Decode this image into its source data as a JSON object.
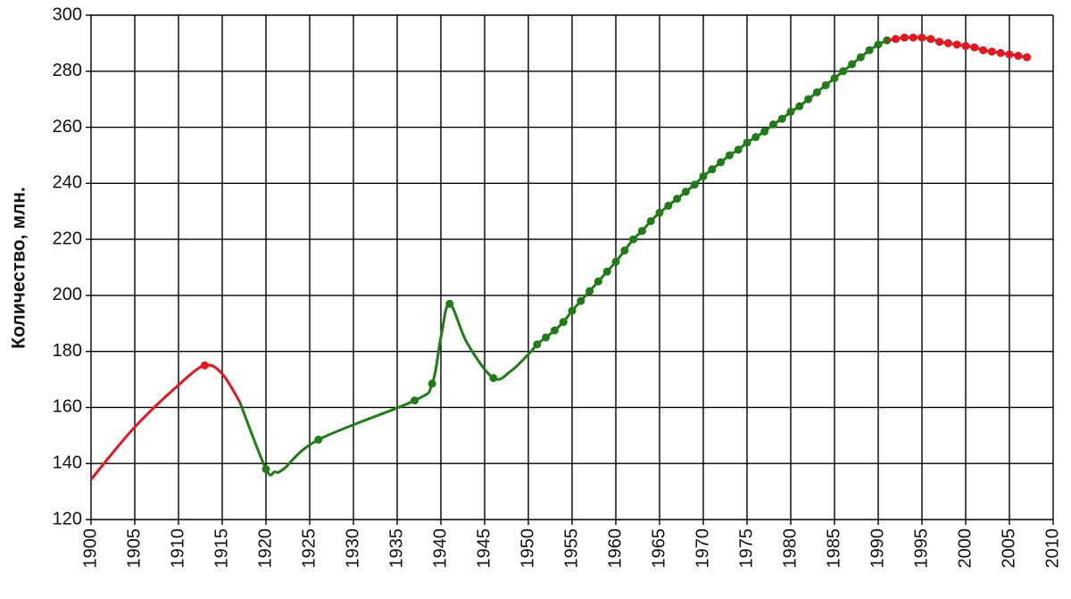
{
  "chart_data": {
    "type": "line",
    "ylabel": "Количество, млн.",
    "xlim": [
      1900,
      2010
    ],
    "xticks": [
      1900,
      1905,
      1910,
      1915,
      1920,
      1925,
      1930,
      1935,
      1940,
      1945,
      1950,
      1955,
      1960,
      1965,
      1970,
      1975,
      1980,
      1985,
      1990,
      1995,
      2000,
      2005,
      2010
    ],
    "ylim": [
      120,
      300
    ],
    "yticks": [
      120,
      140,
      160,
      180,
      200,
      220,
      240,
      260,
      280,
      300
    ],
    "grid": true,
    "series": [
      {
        "color": "#e8141e",
        "x": [
          1900,
          1905,
          1910,
          1913,
          1915,
          1917
        ],
        "values": [
          134.3,
          153,
          168,
          175,
          172,
          162
        ],
        "markers": [
          false,
          false,
          false,
          true,
          false,
          false
        ]
      },
      {
        "color": "#1e7d14",
        "x": [
          1917,
          1920,
          1921,
          1922,
          1926,
          1937,
          1939,
          1940,
          1941,
          1943,
          1946,
          1948,
          1950,
          1951,
          1952,
          1953,
          1954,
          1955,
          1956,
          1957,
          1958,
          1959,
          1960,
          1961,
          1962,
          1963,
          1964,
          1965,
          1966,
          1967,
          1968,
          1969,
          1970,
          1971,
          1972,
          1973,
          1974,
          1975,
          1976,
          1977,
          1978,
          1979,
          1980,
          1981,
          1982,
          1983,
          1984,
          1985,
          1986,
          1987,
          1988,
          1989,
          1990,
          1991
        ],
        "values": [
          162,
          138,
          137,
          138,
          148.5,
          162.5,
          168.5,
          185,
          197,
          183,
          170.5,
          173,
          179,
          182.5,
          185,
          187.5,
          190.5,
          194.5,
          198,
          201.5,
          205,
          208.5,
          212,
          216,
          220,
          223,
          226.5,
          229.5,
          232,
          234.5,
          237,
          239.5,
          242.5,
          245,
          247.5,
          250,
          252,
          254.5,
          256.5,
          258.5,
          261,
          263,
          265.5,
          267.5,
          270,
          272.5,
          275,
          277.5,
          280,
          282.5,
          285,
          287.5,
          289.5,
          291
        ],
        "markers": [
          false,
          true,
          false,
          false,
          true,
          true,
          true,
          false,
          true,
          false,
          true,
          false,
          false,
          true,
          true,
          true,
          true,
          true,
          true,
          true,
          true,
          true,
          true,
          true,
          true,
          true,
          true,
          true,
          true,
          true,
          true,
          true,
          true,
          true,
          true,
          true,
          true,
          true,
          true,
          true,
          true,
          true,
          true,
          true,
          true,
          true,
          true,
          true,
          true,
          true,
          true,
          true,
          true,
          true
        ]
      },
      {
        "color": "#e8141e",
        "x": [
          1991,
          1992,
          1993,
          1994,
          1995,
          1996,
          1997,
          1998,
          1999,
          2000,
          2001,
          2002,
          2003,
          2004,
          2005,
          2006,
          2007
        ],
        "values": [
          291,
          291.5,
          292,
          292,
          292,
          291.5,
          290.5,
          290,
          289.5,
          289,
          288.5,
          287.5,
          287,
          286.5,
          286,
          285.5,
          285
        ],
        "markers": [
          false,
          true,
          true,
          true,
          true,
          true,
          true,
          true,
          true,
          true,
          true,
          true,
          true,
          true,
          true,
          true,
          true
        ]
      }
    ]
  }
}
